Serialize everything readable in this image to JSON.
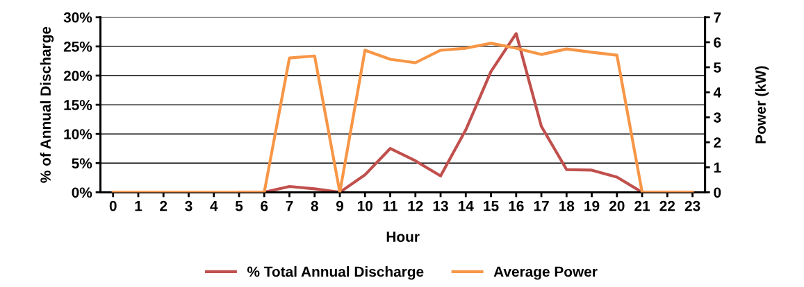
{
  "chart_data": {
    "type": "line",
    "xlabel": "Hour",
    "ylabel": "% of Annual Discharge",
    "y2label": "Power (kW)",
    "categories": [
      "0",
      "1",
      "2",
      "3",
      "4",
      "5",
      "6",
      "7",
      "8",
      "9",
      "10",
      "11",
      "12",
      "13",
      "14",
      "15",
      "16",
      "17",
      "18",
      "19",
      "20",
      "21",
      "22",
      "23"
    ],
    "series": [
      {
        "name": "% Total Annual Discharge",
        "color": "#c0504d",
        "values": [
          null,
          null,
          null,
          null,
          null,
          0,
          0,
          1.0,
          0.6,
          0,
          3.0,
          7.5,
          5.4,
          2.8,
          10.7,
          20.7,
          27.2,
          11.3,
          3.9,
          3.8,
          2.6,
          0,
          0,
          0
        ]
      },
      {
        "name": "Average Power",
        "color": "#f79646",
        "axis": "y2",
        "values": [
          0,
          0,
          0,
          0,
          0,
          0,
          0,
          5.37,
          5.45,
          0,
          5.68,
          5.32,
          5.18,
          5.68,
          5.76,
          5.96,
          5.76,
          5.51,
          5.73,
          5.6,
          5.48,
          0,
          0,
          0
        ]
      }
    ],
    "ylim": [
      0,
      30
    ],
    "yticks": [
      {
        "value": 0,
        "label": "0%"
      },
      {
        "value": 5,
        "label": "5%"
      },
      {
        "value": 10,
        "label": "10%"
      },
      {
        "value": 15,
        "label": "15%"
      },
      {
        "value": 20,
        "label": "20%"
      },
      {
        "value": 25,
        "label": "25%"
      },
      {
        "value": 30,
        "label": "30%"
      }
    ],
    "y2lim": [
      0,
      7
    ],
    "y2ticks": [
      0,
      1,
      2,
      3,
      4,
      5,
      6,
      7
    ],
    "grid": "y",
    "legend": "bottom",
    "marker": "none",
    "line_style": "solid"
  }
}
